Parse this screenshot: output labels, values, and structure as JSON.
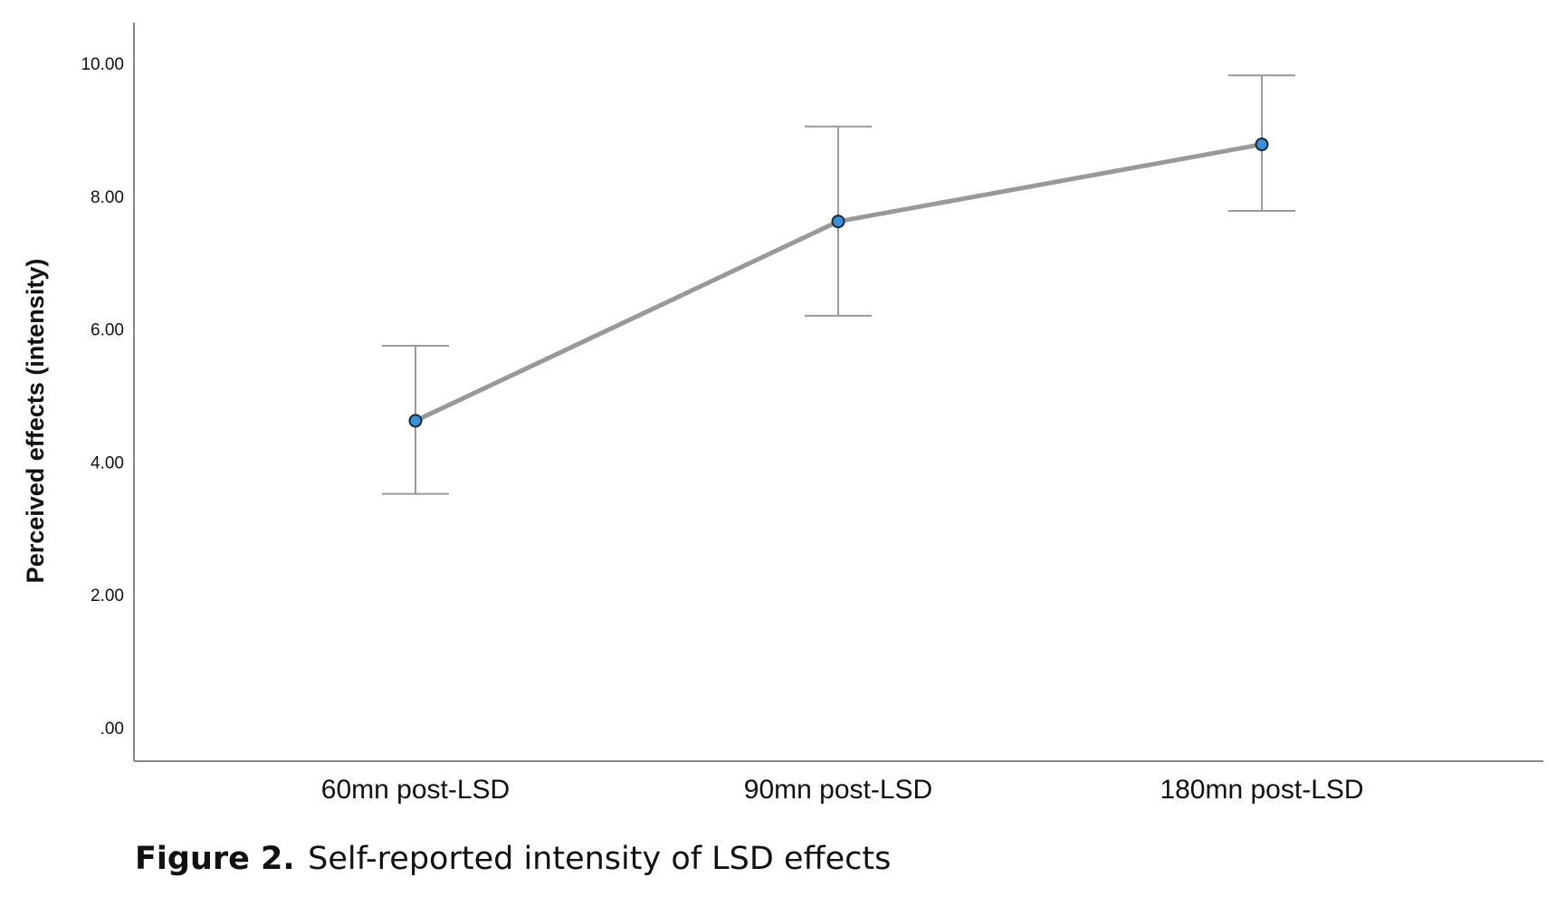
{
  "chart_data": {
    "type": "line",
    "title": "",
    "xlabel": "",
    "ylabel": "Perceived effects (intensity)",
    "categories": [
      "60mn post-LSD",
      "90mn post-LSD",
      "180mn post-LSD"
    ],
    "series": [
      {
        "name": "Perceived effects (intensity)",
        "values": [
          4.62,
          7.62,
          8.78
        ],
        "error_low": [
          3.52,
          6.2,
          7.78
        ],
        "error_high": [
          5.75,
          9.05,
          9.82
        ]
      }
    ],
    "yticks": [
      ".00",
      "2.00",
      "4.00",
      "6.00",
      "8.00",
      "10.00"
    ],
    "ylim": [
      0,
      10.5
    ],
    "grid": false,
    "colors": {
      "line": "#999999",
      "marker_fill": "#3b8fd4",
      "marker_stroke": "#1a2a3a",
      "errorbar": "#999999",
      "axis": "#888888"
    }
  },
  "caption": {
    "label": "Figure 2.",
    "text": "Self-reported intensity of LSD effects"
  }
}
